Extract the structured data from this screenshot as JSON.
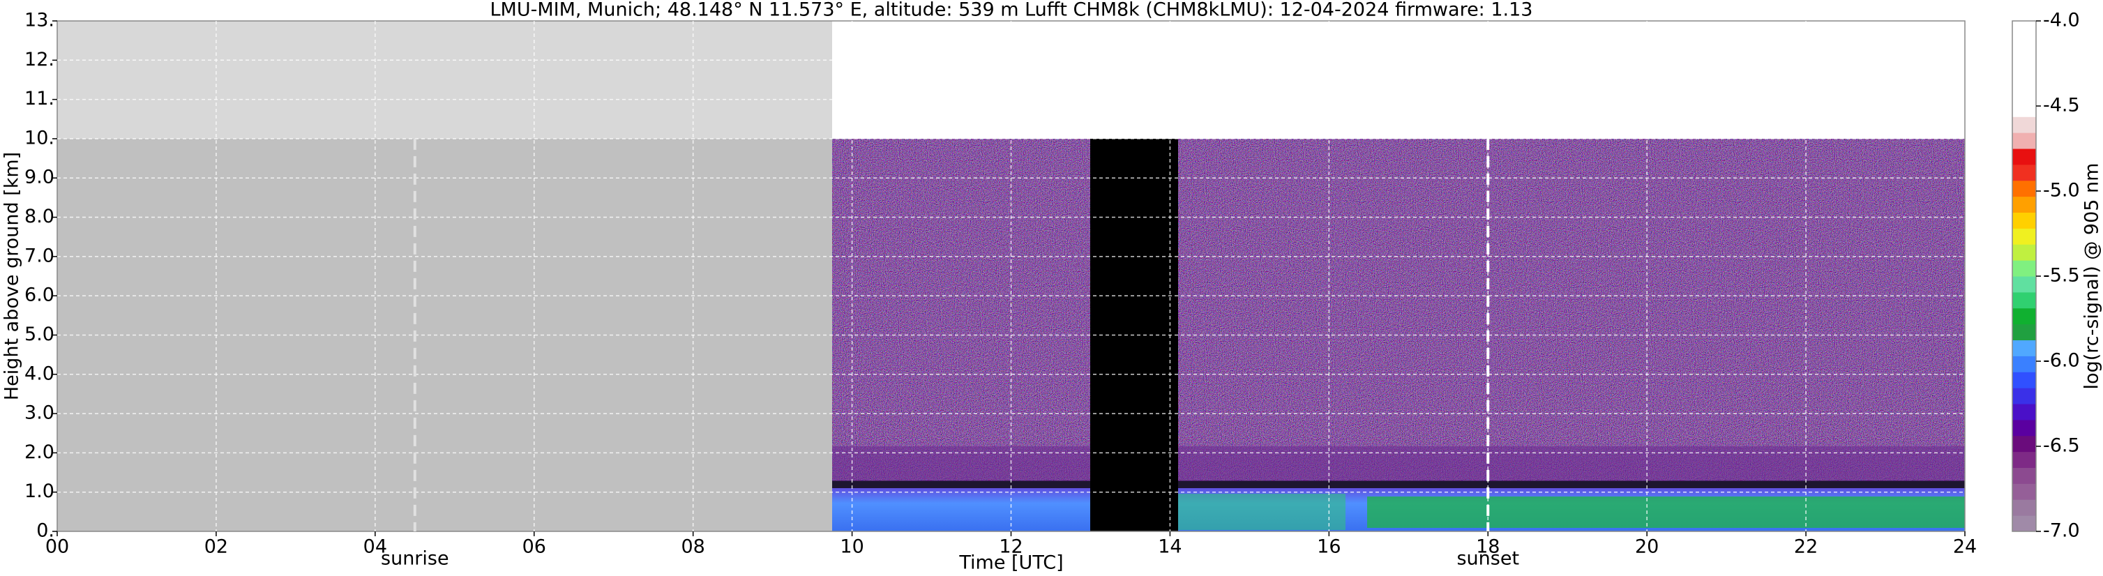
{
  "chart_data": {
    "type": "heatmap",
    "title": "LMU-MIM, Munich; 48.148° N 11.573° E, altitude: 539 m    Lufft CHM8k (CHM8kLMU): 12-04-2024    firmware: 1.13",
    "x_label": "Time [UTC]",
    "y_label": "Height above ground [km]",
    "xlim": [
      0,
      24
    ],
    "ylim": [
      0,
      13
    ],
    "grid": true,
    "xticks": [
      {
        "value": 0,
        "label": "00"
      },
      {
        "value": 2,
        "label": "02"
      },
      {
        "value": 4,
        "label": "04"
      },
      {
        "value": 6,
        "label": "06"
      },
      {
        "value": 8,
        "label": "08"
      },
      10,
      12,
      14,
      16,
      18,
      20,
      22,
      24
    ],
    "yticks": [
      {
        "value": 0,
        "label": "0."
      },
      {
        "value": 1,
        "label": "1.0"
      },
      {
        "value": 2,
        "label": "2.0"
      },
      {
        "value": 3,
        "label": "3.0"
      },
      {
        "value": 4,
        "label": "4.0"
      },
      {
        "value": 5,
        "label": "5.0"
      },
      {
        "value": 6,
        "label": "6.0"
      },
      {
        "value": 7,
        "label": "7.0"
      },
      {
        "value": 8,
        "label": "8.0"
      },
      {
        "value": 9,
        "label": "9.0"
      },
      {
        "value": 10,
        "label": "10."
      },
      {
        "value": 11,
        "label": "11."
      },
      {
        "value": 12,
        "label": "12."
      },
      {
        "value": 13,
        "label": "13."
      }
    ],
    "markers": [
      {
        "label": "sunrise",
        "x": 4.5,
        "color": "#e0e0e0"
      },
      {
        "label": "sunset",
        "x": 18,
        "color": "#ffffff"
      }
    ],
    "colorbar": {
      "label": "log(rc-signal) @ 905 nm",
      "lim": [
        -7,
        -4
      ],
      "ticks": [
        {
          "value": -4,
          "label": "-4.0"
        },
        {
          "value": -4.5,
          "label": "-4.5"
        },
        {
          "value": -5,
          "label": "-5.0"
        },
        {
          "value": -5.5,
          "label": "-5.5"
        },
        {
          "value": -6,
          "label": "-6.0"
        },
        {
          "value": -6.5,
          "label": "-6.5"
        },
        {
          "value": -7,
          "label": "-7.0"
        }
      ],
      "colors": [
        "#a08aa8",
        "#9a7aa0",
        "#955f98",
        "#8c4a90",
        "#7e2a86",
        "#6a0c7c",
        "#5a00a0",
        "#4a10c8",
        "#3a30e8",
        "#3050ff",
        "#3a80ff",
        "#50a8ff",
        "#20a040",
        "#10b030",
        "#30d070",
        "#60e0a0",
        "#80f080",
        "#c0f040",
        "#f0f020",
        "#ffd000",
        "#ffa000",
        "#ff7000",
        "#f03020",
        "#e81010",
        "#f0b0b0",
        "#f0d8d8",
        "#ffffff",
        "#ffffff",
        "#ffffff",
        "#ffffff",
        "#ffffff",
        "#ffffff"
      ]
    }
  }
}
